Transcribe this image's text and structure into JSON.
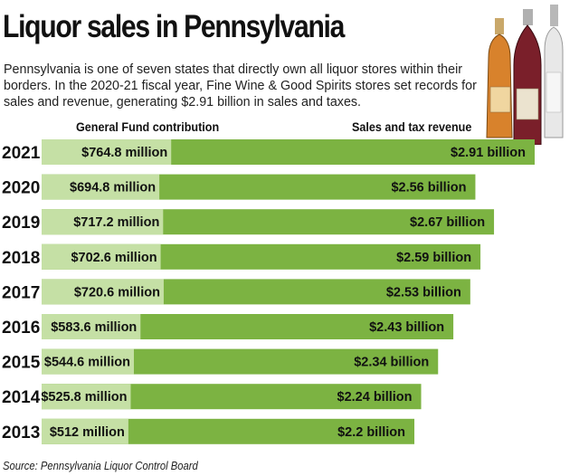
{
  "header": {
    "title": "Liquor sales in Pennsylvania",
    "intro": "Pennsylvania is one of seven states that directly own all liquor stores within their borders. In the 2020-21 fiscal year, Fine Wine & Good Spirits stores set records for sales and revenue, generating $2.91 billion in sales and taxes."
  },
  "chart_data": {
    "type": "bar",
    "orientation": "horizontal",
    "title": "Liquor sales in Pennsylvania",
    "categories": [
      "2021",
      "2020",
      "2019",
      "2018",
      "2017",
      "2016",
      "2015",
      "2014",
      "2013"
    ],
    "series": [
      {
        "name": "General Fund contribution",
        "unit": "million",
        "values": [
          764.8,
          694.8,
          717.2,
          702.6,
          720.6,
          583.6,
          544.6,
          525.8,
          512
        ],
        "labels": [
          "$764.8 million",
          "$694.8 million",
          "$717.2 million",
          "$702.6 million",
          "$720.6 million",
          "$583.6 million",
          "$544.6 million",
          "$525.8 million",
          "$512 million"
        ]
      },
      {
        "name": "Sales and tax revenue",
        "unit": "billion",
        "values": [
          2.91,
          2.56,
          2.67,
          2.59,
          2.53,
          2.43,
          2.34,
          2.24,
          2.2
        ],
        "labels": [
          "$2.91 billion",
          "$2.56 billion",
          "$2.67 billion",
          "$2.59 billion",
          "$2.53 billion",
          "$2.43 billion",
          "$2.34 billion",
          "$2.24 billion",
          "$2.2 billion"
        ]
      }
    ],
    "xlim": [
      0,
      2910
    ],
    "legend": "top",
    "colors": {
      "revenue": "#7cb342",
      "general_fund": "#c5e0a5",
      "text": "#111111"
    }
  },
  "source": "Source: Pennsylvania Liquor Control Board"
}
